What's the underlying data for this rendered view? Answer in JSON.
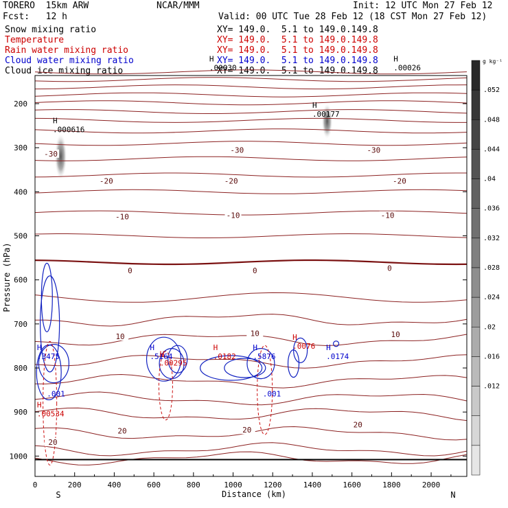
{
  "header": {
    "model": "TORERO  15km ARW",
    "org": "NCAR/MMM",
    "init": "Init: 12 UTC Mon 27 Feb 12",
    "fcst": "Fcst:   12 h",
    "valid": "Valid: 00 UTC Tue 28 Feb 12 (18 CST Mon 27 Feb 12)"
  },
  "fields": [
    {
      "name": "Snow mixing ratio",
      "xy": "XY= 149.0.  5.1 to 149.0.149.8",
      "color": "#000000"
    },
    {
      "name": "Temperature",
      "xy": "XY= 149.0.  5.1 to 149.0.149.8",
      "color": "#cc0000"
    },
    {
      "name": "Rain water mixing ratio",
      "xy": "XY= 149.0.  5.1 to 149.0.149.8",
      "color": "#cc0000"
    },
    {
      "name": "Cloud water mixing ratio",
      "xy": "XY= 149.0.  5.1 to 149.0.149.8",
      "color": "#0000cc"
    },
    {
      "name": "Cloud ice mixing ratio",
      "xy": "XY= 149.0.  5.1 to 149.0.149.8",
      "color": "#000000"
    }
  ],
  "chart_data": {
    "type": "contour",
    "xlabel": "Distance (km)",
    "ylabel": "Pressure (hPa)",
    "xlim": [
      0,
      2180
    ],
    "ylim": [
      1050,
      100
    ],
    "x_ticks": [
      0,
      200,
      400,
      600,
      800,
      1000,
      1200,
      1400,
      1600,
      1800,
      2000
    ],
    "y_ticks": [
      200,
      300,
      400,
      500,
      600,
      700,
      800,
      900,
      1000
    ],
    "x_end_labels": {
      "left": "S",
      "right": "N"
    },
    "colorbar": {
      "unit": "g kg⁻¹",
      "ticks": [
        ".012",
        ".016",
        ".02",
        ".024",
        ".028",
        ".032",
        ".036",
        ".04",
        ".044",
        ".048",
        ".052"
      ]
    },
    "isotherm_labels": [
      {
        "label": "-30",
        "x": 80,
        "p": 315
      },
      {
        "label": "-30",
        "x": 1020,
        "p": 307
      },
      {
        "label": "-30",
        "x": 1710,
        "p": 307
      },
      {
        "label": "-20",
        "x": 360,
        "p": 377
      },
      {
        "label": "-20",
        "x": 990,
        "p": 377
      },
      {
        "label": "-20",
        "x": 1840,
        "p": 377
      },
      {
        "label": "-10",
        "x": 440,
        "p": 458
      },
      {
        "label": "-10",
        "x": 1000,
        "p": 455
      },
      {
        "label": "-10",
        "x": 1780,
        "p": 455
      },
      {
        "label": "0",
        "x": 480,
        "p": 580
      },
      {
        "label": "0",
        "x": 1110,
        "p": 580
      },
      {
        "label": "0",
        "x": 1790,
        "p": 575
      },
      {
        "label": "10",
        "x": 430,
        "p": 730
      },
      {
        "label": "10",
        "x": 1110,
        "p": 723
      },
      {
        "label": "10",
        "x": 1820,
        "p": 725
      },
      {
        "label": "20",
        "x": 440,
        "p": 944
      },
      {
        "label": "20",
        "x": 1070,
        "p": 942
      },
      {
        "label": "20",
        "x": 1630,
        "p": 930
      },
      {
        "label": "20",
        "x": 90,
        "p": 970
      }
    ],
    "maxima_labels": [
      {
        "label": "H",
        "value": ".000616",
        "x": 90,
        "p": 260,
        "color": "#000000"
      },
      {
        "label": "H",
        "value": ".00177",
        "x": 1400,
        "p": 225,
        "color": "#000000"
      },
      {
        "label": "H",
        "value": ".00026",
        "x": 1810,
        "p": 120,
        "color": "#000000"
      },
      {
        "label": "H",
        "value": ".00030",
        "x": 880,
        "p": 120,
        "color": "#000000"
      },
      {
        "label": "H",
        "value": ".3475",
        "x": 10,
        "p": 775,
        "color": "#0000cc"
      },
      {
        "label": "H",
        "value": ".5164",
        "x": 580,
        "p": 775,
        "color": "#0000cc"
      },
      {
        "label": "H",
        "value": ".5876",
        "x": 1100,
        "p": 775,
        "color": "#0000cc"
      },
      {
        "label": "H",
        "value": ".0174",
        "x": 1470,
        "p": 775,
        "color": "#0000cc"
      },
      {
        "label": "H",
        "value": ".00534",
        "x": 10,
        "p": 905,
        "color": "#cc0000"
      },
      {
        "label": "H",
        "value": ".00295",
        "x": 630,
        "p": 790,
        "color": "#cc0000"
      },
      {
        "label": "H",
        "value": ".0182",
        "x": 900,
        "p": 775,
        "color": "#cc0000"
      },
      {
        "label": "H",
        "value": ".0076",
        "x": 1300,
        "p": 752,
        "color": "#cc0000"
      }
    ],
    "cloud_water_labels": [
      {
        "label": ".001",
        "x": 60,
        "p": 865
      },
      {
        "label": ".001",
        "x": 1150,
        "p": 865
      }
    ]
  }
}
